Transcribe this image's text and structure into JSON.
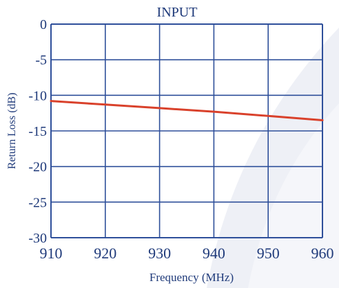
{
  "chart_data": {
    "type": "line",
    "title": "INPUT",
    "xlabel": "Frequency (MHz)",
    "ylabel": "Return Loss (dB)",
    "xlim": [
      910,
      960
    ],
    "ylim": [
      -30,
      0
    ],
    "x_ticks": [
      910,
      920,
      930,
      940,
      950,
      960
    ],
    "y_ticks": [
      0,
      -5,
      -10,
      -15,
      -20,
      -25,
      -30
    ],
    "x_tick_labels": [
      "910",
      "920",
      "930",
      "940",
      "950",
      "960"
    ],
    "y_tick_labels": [
      "0",
      "-5",
      "-10",
      "-15",
      "-20",
      "-25",
      "-30"
    ],
    "grid": true,
    "series": [
      {
        "x": [
          910,
          920,
          930,
          940,
          950,
          960
        ],
        "y": [
          -10.8,
          -11.3,
          -11.8,
          -12.3,
          -12.9,
          -13.5
        ],
        "color": "#d9412b"
      }
    ]
  },
  "colors": {
    "grid": "#2e4f9a",
    "axis_text": "#1f3a7a",
    "background_shade": "#eef0f6"
  }
}
